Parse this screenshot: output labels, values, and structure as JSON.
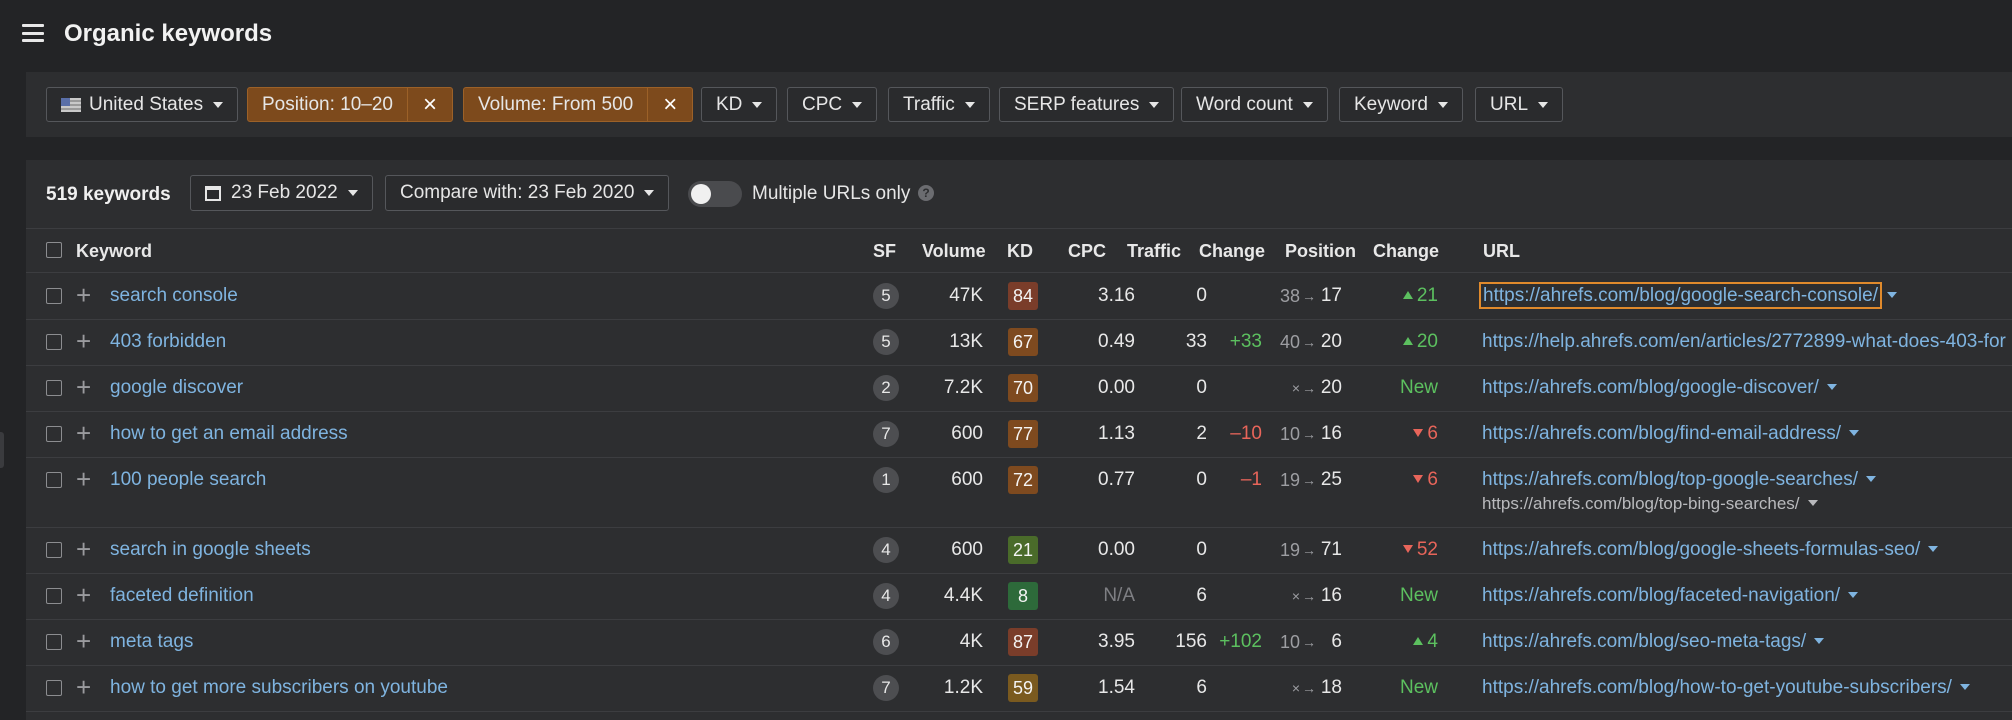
{
  "header": {
    "title": "Organic keywords"
  },
  "filters": {
    "country": "United States",
    "position": "Position: 10–20",
    "volume": "Volume: From 500",
    "kd": "KD",
    "cpc": "CPC",
    "traffic": "Traffic",
    "serp": "SERP features",
    "word_count": "Word count",
    "keyword": "Keyword",
    "url": "URL",
    "remove_icon": "×"
  },
  "toolbar": {
    "count": "519 keywords",
    "date": "23 Feb 2022",
    "compare": "Compare with: 23 Feb 2020",
    "multiple_urls": "Multiple URLs only",
    "help": "?"
  },
  "columns": {
    "keyword": "Keyword",
    "sf": "SF",
    "volume": "Volume",
    "kd": "KD",
    "cpc": "CPC",
    "traffic": "Traffic",
    "change": "Change",
    "position": "Position",
    "pos_change": "Change",
    "url": "URL"
  },
  "rows": [
    {
      "keyword": "search console",
      "sf": "5",
      "volume": "47K",
      "kd": "84",
      "kd_color": "#7a3d2a",
      "cpc": "3.16",
      "traffic": "0",
      "traffic_change": "",
      "pos_from": "38",
      "pos_to": "17",
      "pos_change": "21",
      "pos_dir": "up",
      "url": "https://ahrefs.com/blog/google-search-console/",
      "url2": ""
    },
    {
      "keyword": "403 forbidden",
      "sf": "5",
      "volume": "13K",
      "kd": "67",
      "kd_color": "#7e4a1f",
      "cpc": "0.49",
      "traffic": "33",
      "traffic_change": "+33",
      "traffic_dir": "up",
      "pos_from": "40",
      "pos_to": "20",
      "pos_change": "20",
      "pos_dir": "up",
      "url": "https://help.ahrefs.com/en/articles/2772899-what-does-403-for",
      "url2": ""
    },
    {
      "keyword": "google discover",
      "sf": "2",
      "volume": "7.2K",
      "kd": "70",
      "kd_color": "#7e4a1f",
      "cpc": "0.00",
      "traffic": "0",
      "traffic_change": "",
      "pos_from": "×",
      "pos_to": "20",
      "pos_change": "New",
      "pos_dir": "new",
      "url": "https://ahrefs.com/blog/google-discover/",
      "url2": ""
    },
    {
      "keyword": "how to get an email address",
      "sf": "7",
      "volume": "600",
      "kd": "77",
      "kd_color": "#7e4a1f",
      "cpc": "1.13",
      "traffic": "2",
      "traffic_change": "–10",
      "traffic_dir": "down",
      "pos_from": "10",
      "pos_to": "16",
      "pos_change": "6",
      "pos_dir": "down",
      "url": "https://ahrefs.com/blog/find-email-address/",
      "url2": ""
    },
    {
      "keyword": "100 people search",
      "sf": "1",
      "volume": "600",
      "kd": "72",
      "kd_color": "#7e4a1f",
      "cpc": "0.77",
      "traffic": "0",
      "traffic_change": "–1",
      "traffic_dir": "down",
      "pos_from": "19",
      "pos_to": "25",
      "pos_change": "6",
      "pos_dir": "down",
      "url": "https://ahrefs.com/blog/top-google-searches/",
      "url2": "https://ahrefs.com/blog/top-bing-searches/"
    },
    {
      "keyword": "search in google sheets",
      "sf": "4",
      "volume": "600",
      "kd": "21",
      "kd_color": "#4a6b2a",
      "cpc": "0.00",
      "traffic": "0",
      "traffic_change": "",
      "pos_from": "19",
      "pos_to": "71",
      "pos_change": "52",
      "pos_dir": "down",
      "url": "https://ahrefs.com/blog/google-sheets-formulas-seo/",
      "url2": ""
    },
    {
      "keyword": "faceted definition",
      "sf": "4",
      "volume": "4.4K",
      "kd": "8",
      "kd_color": "#2d6a3a",
      "cpc": "N/A",
      "traffic": "6",
      "traffic_change": "",
      "pos_from": "×",
      "pos_to": "16",
      "pos_change": "New",
      "pos_dir": "new",
      "url": "https://ahrefs.com/blog/faceted-navigation/",
      "url2": ""
    },
    {
      "keyword": "meta tags",
      "sf": "6",
      "volume": "4K",
      "kd": "87",
      "kd_color": "#7a3d2a",
      "cpc": "3.95",
      "traffic": "156",
      "traffic_change": "+102",
      "traffic_dir": "up",
      "pos_from": "10",
      "pos_to": "6",
      "pos_change": "4",
      "pos_dir": "up",
      "url": "https://ahrefs.com/blog/seo-meta-tags/",
      "url2": ""
    },
    {
      "keyword": "how to get more subscribers on youtube",
      "sf": "7",
      "volume": "1.2K",
      "kd": "59",
      "kd_color": "#7a5a1f",
      "cpc": "1.54",
      "traffic": "6",
      "traffic_change": "",
      "pos_from": "×",
      "pos_to": "18",
      "pos_change": "New",
      "pos_dir": "new",
      "url": "https://ahrefs.com/blog/how-to-get-youtube-subscribers/",
      "url2": ""
    }
  ]
}
